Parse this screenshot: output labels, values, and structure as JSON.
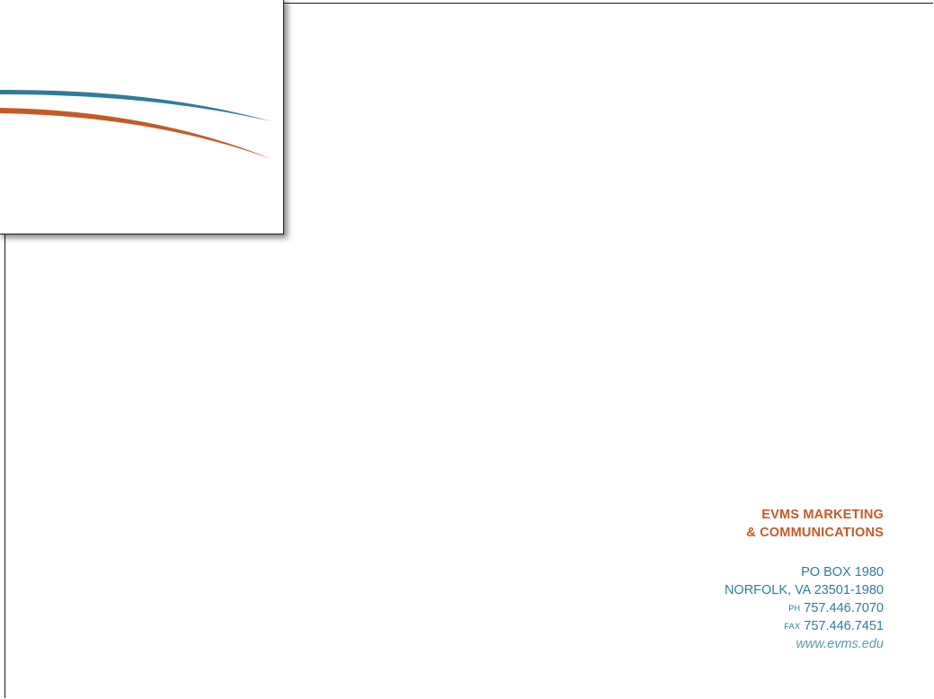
{
  "colors": {
    "teal": "#2e7d99",
    "orange": "#c45a26",
    "web_teal": "#5a9cb3"
  },
  "address": {
    "org_line_1": "EVMS MARKETING",
    "org_line_2": "& COMMUNICATIONS",
    "po_box": "PO BOX 1980",
    "city_state_zip": "NORFOLK, VA 23501-1980",
    "phone_label": "PH",
    "phone": "757.446.7070",
    "fax_label": "FAX",
    "fax": "757.446.7451",
    "website": "www.evms.edu"
  }
}
